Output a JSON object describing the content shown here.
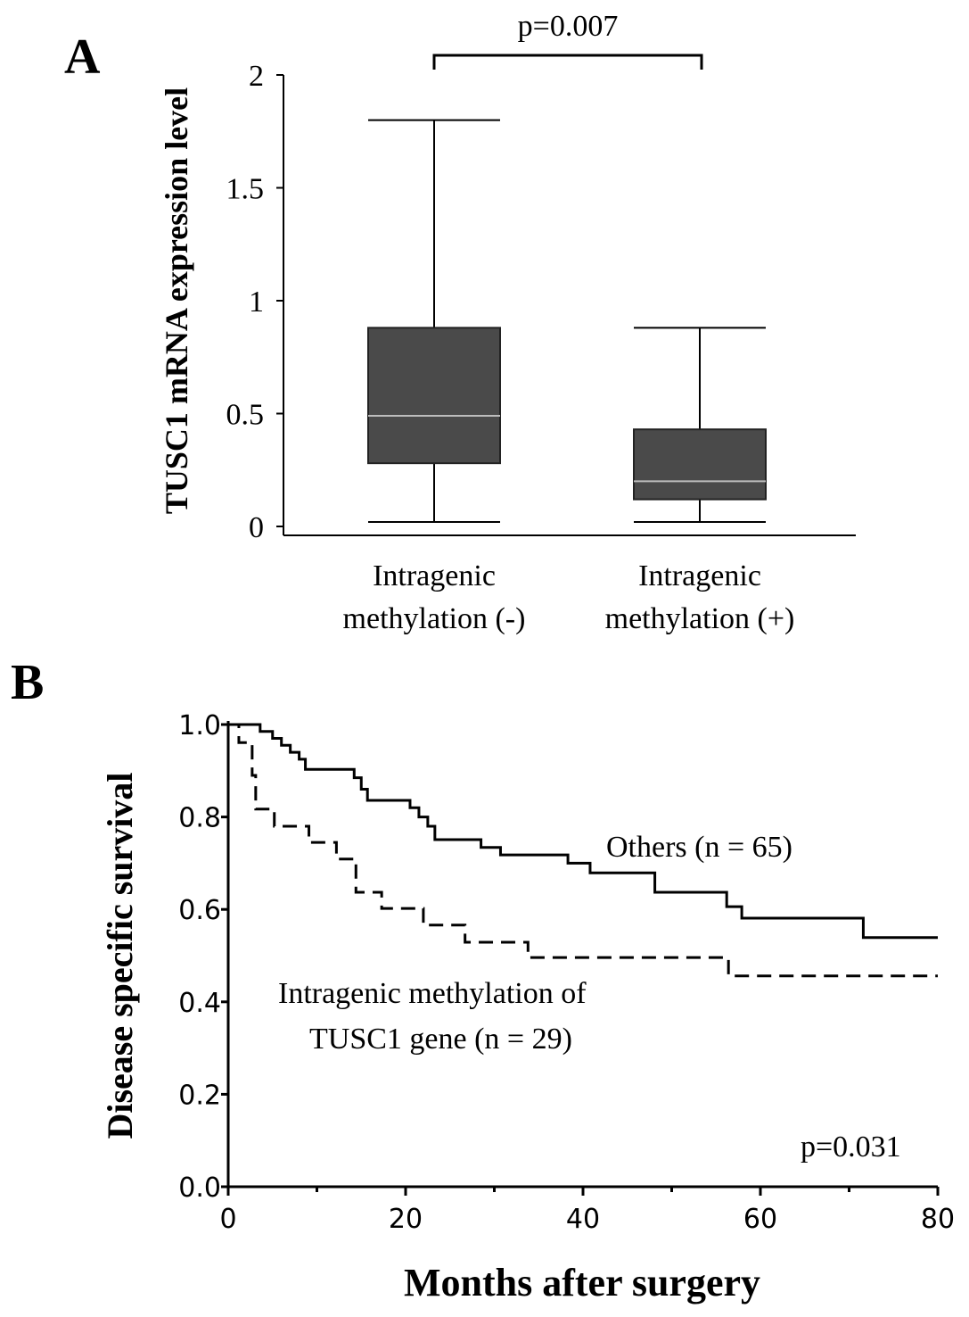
{
  "chart_data": [
    {
      "panel_label": "A",
      "type": "box",
      "ylabel": "TUSC1 mRNA expression level",
      "ylim": [
        0,
        2
      ],
      "yticks": [
        0,
        0.5,
        1,
        1.5,
        2
      ],
      "ytick_labels": [
        "0",
        "0.5",
        "1",
        "1.5",
        "2"
      ],
      "categories": [
        {
          "line1": "Intragenic",
          "line2": "methylation (-)"
        },
        {
          "line1": "Intragenic",
          "line2": "methylation (+)"
        }
      ],
      "boxes": [
        {
          "min": 0.02,
          "q1": 0.28,
          "median": 0.49,
          "q3": 0.88,
          "max": 1.8
        },
        {
          "min": 0.02,
          "q1": 0.12,
          "median": 0.2,
          "q3": 0.43,
          "max": 0.88
        }
      ],
      "annotation": "p=0.007",
      "box_color": "#4a4a4a",
      "median_color": "#bdbdbd"
    },
    {
      "panel_label": "B",
      "type": "line",
      "subtype": "kaplan-meier step",
      "xlabel": "Months after surgery",
      "ylabel": "Disease specific survival",
      "xlim": [
        0,
        80
      ],
      "ylim": [
        0,
        1
      ],
      "xticks": [
        0,
        20,
        40,
        60,
        80
      ],
      "xtick_labels": [
        "0",
        "20",
        "40",
        "60",
        "80"
      ],
      "yticks": [
        0,
        0.2,
        0.4,
        0.6,
        0.8,
        1.0
      ],
      "ytick_labels": [
        "0.0",
        "0.2",
        "0.4",
        "0.6",
        "0.8",
        "1.0"
      ],
      "annotation": "p=0.031",
      "series": [
        {
          "name": "Others (n = 65)",
          "style": "solid",
          "x": [
            0,
            3.6,
            5,
            6,
            7,
            8,
            8.7,
            14.2,
            15,
            15.7,
            20.5,
            21.5,
            22.5,
            23.3,
            28.5,
            30.7,
            38.3,
            40.8,
            48.1,
            56.2,
            57.9,
            71.6,
            80
          ],
          "y": [
            1.0,
            0.985,
            0.97,
            0.955,
            0.94,
            0.925,
            0.903,
            0.885,
            0.86,
            0.836,
            0.82,
            0.8,
            0.78,
            0.751,
            0.734,
            0.718,
            0.7,
            0.679,
            0.637,
            0.606,
            0.581,
            0.539,
            0.539
          ]
        },
        {
          "name_line1": "Intragenic methylation of",
          "name_line2": "TUSC1 gene (n = 29)",
          "style": "dashed",
          "x": [
            0,
            1.2,
            2.7,
            3.1,
            5.2,
            9.1,
            12.2,
            14.4,
            17.3,
            22,
            26.7,
            33.8,
            56.4,
            80
          ],
          "y": [
            1.0,
            0.961,
            0.89,
            0.817,
            0.78,
            0.745,
            0.709,
            0.637,
            0.602,
            0.566,
            0.529,
            0.496,
            0.456,
            0.456
          ]
        }
      ]
    }
  ]
}
